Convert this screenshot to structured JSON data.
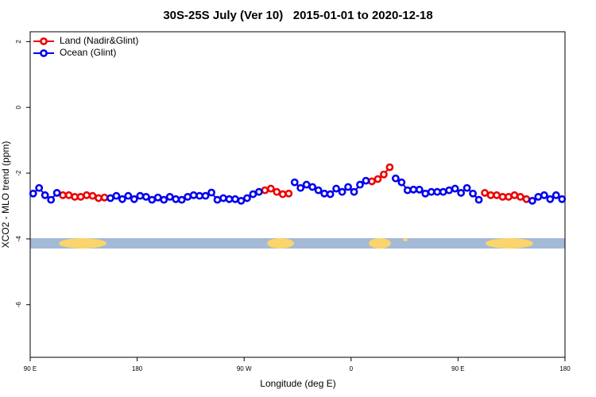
{
  "chart_data": {
    "type": "line",
    "title": "30S-25S July (Ver 10)   2015-01-01 to 2020-12-18",
    "x_label": "Longitude (deg E)",
    "y_label": "XCO2 - MLO trend (ppm)",
    "xlim": [
      90,
      540
    ],
    "ylim": [
      -7.6,
      2.3
    ],
    "xticks": [
      {
        "value": 90,
        "label": "90 E"
      },
      {
        "value": 180,
        "label": "180"
      },
      {
        "value": 270,
        "label": "90 W"
      },
      {
        "value": 360,
        "label": "0"
      },
      {
        "value": 450,
        "label": "90 E"
      },
      {
        "value": 540,
        "label": "180"
      }
    ],
    "yticks": [
      2,
      0,
      -2,
      -4,
      -6
    ],
    "legend": "top-left",
    "x": [
      92.5,
      97.5,
      102.5,
      107.5,
      112.5,
      117.5,
      122.5,
      127.5,
      132.5,
      137.5,
      142.5,
      147.5,
      152.5,
      157.5,
      162.5,
      167.5,
      172.5,
      177.5,
      182.5,
      187.5,
      192.5,
      197.5,
      202.5,
      207.5,
      212.5,
      217.5,
      222.5,
      227.5,
      232.5,
      237.5,
      242.5,
      247.5,
      252.5,
      257.5,
      262.5,
      267.5,
      272.5,
      277.5,
      282.5,
      287.5,
      292.5,
      297.5,
      302.5,
      307.5,
      312.5,
      317.5,
      322.5,
      327.5,
      332.5,
      337.5,
      342.5,
      347.5,
      352.5,
      357.5,
      362.5,
      367.5,
      372.5,
      377.5,
      382.5,
      387.5,
      392.5,
      397.5,
      402.5,
      407.5,
      412.5,
      417.5,
      422.5,
      427.5,
      432.5,
      437.5,
      442.5,
      447.5,
      452.5,
      457.5,
      462.5,
      467.5,
      472.5,
      477.5,
      482.5,
      487.5,
      492.5,
      497.5,
      502.5,
      507.5,
      512.5,
      517.5,
      522.5,
      527.5,
      532.5,
      537.5
    ],
    "series": [
      {
        "name": "Land (Nadir&Glint)",
        "color": "#ee0000",
        "values": [
          null,
          null,
          null,
          null,
          null,
          -2.67,
          -2.67,
          -2.72,
          -2.72,
          -2.67,
          -2.69,
          -2.76,
          -2.74,
          null,
          null,
          null,
          null,
          null,
          null,
          null,
          null,
          null,
          null,
          null,
          null,
          null,
          null,
          null,
          null,
          null,
          null,
          null,
          null,
          null,
          null,
          null,
          null,
          null,
          null,
          -2.52,
          -2.47,
          -2.57,
          -2.64,
          -2.62,
          null,
          null,
          null,
          null,
          null,
          null,
          null,
          null,
          null,
          null,
          null,
          null,
          null,
          -2.25,
          -2.18,
          -2.04,
          -1.82,
          null,
          null,
          null,
          null,
          null,
          null,
          null,
          null,
          null,
          null,
          null,
          null,
          null,
          null,
          null,
          -2.6,
          -2.67,
          -2.67,
          -2.72,
          -2.72,
          -2.67,
          -2.72,
          -2.79,
          null,
          null,
          null,
          null,
          null,
          null
        ]
      },
      {
        "name": "Ocean (Glint)",
        "color": "#0000ee",
        "values": [
          -2.62,
          -2.45,
          -2.67,
          -2.81,
          -2.6,
          null,
          null,
          null,
          null,
          null,
          null,
          null,
          null,
          -2.76,
          -2.69,
          -2.79,
          -2.69,
          -2.79,
          -2.69,
          -2.72,
          -2.81,
          -2.74,
          -2.81,
          -2.72,
          -2.79,
          -2.81,
          -2.72,
          -2.67,
          -2.69,
          -2.69,
          -2.59,
          -2.81,
          -2.76,
          -2.79,
          -2.79,
          -2.84,
          -2.76,
          -2.64,
          -2.57,
          null,
          null,
          null,
          null,
          null,
          -2.28,
          -2.45,
          -2.35,
          -2.42,
          -2.52,
          -2.62,
          -2.64,
          -2.47,
          -2.57,
          -2.42,
          -2.57,
          -2.35,
          -2.23,
          null,
          null,
          null,
          null,
          -2.16,
          -2.28,
          -2.52,
          -2.5,
          -2.5,
          -2.62,
          -2.57,
          -2.57,
          -2.57,
          -2.52,
          -2.47,
          -2.6,
          -2.45,
          -2.62,
          -2.81,
          null,
          null,
          null,
          null,
          null,
          null,
          null,
          null,
          -2.84,
          -2.72,
          -2.67,
          -2.79,
          -2.67,
          -2.79
        ]
      }
    ]
  }
}
